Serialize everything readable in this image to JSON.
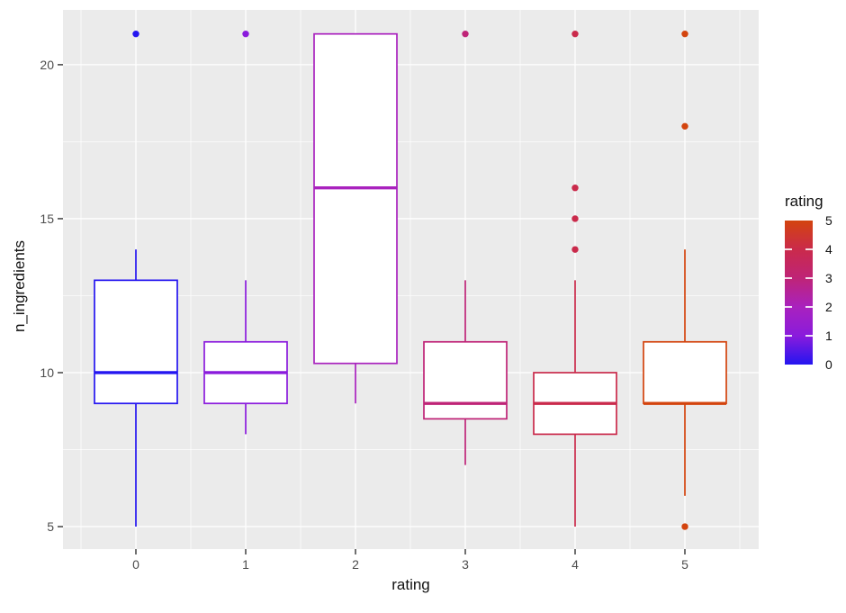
{
  "chart_data": {
    "type": "boxplot",
    "title": "",
    "xlabel": "rating",
    "ylabel": "n_ingredients",
    "x_categories": [
      "0",
      "1",
      "2",
      "3",
      "4",
      "5"
    ],
    "y_ticks": [
      5,
      10,
      15,
      20
    ],
    "y_minor_gridlines": [
      7.5,
      12.5,
      17.5
    ],
    "ylim": [
      4.27,
      21.78
    ],
    "grid": true,
    "panel_bg_color": "#EBEBEB",
    "grid_color": "#FFFFFF",
    "tick_mark_color": "#333333",
    "tick_label_color": "#4D4D4D",
    "series": [
      {
        "rating": "0",
        "color": "#2415F0",
        "whisker_low": 5,
        "q1": 9,
        "median": 10,
        "q3": 13,
        "whisker_high": 14,
        "outliers": [
          21
        ]
      },
      {
        "rating": "1",
        "color": "#8A1BDC",
        "whisker_low": 8,
        "q1": 9,
        "median": 10,
        "q3": 11,
        "whisker_high": 13,
        "outliers": [
          21
        ]
      },
      {
        "rating": "2",
        "color": "#A922BE",
        "whisker_low": 9,
        "q1": 10.3,
        "median": 16,
        "q3": 21,
        "whisker_high": 21,
        "outliers": []
      },
      {
        "rating": "3",
        "color": "#BF2477",
        "whisker_low": 7,
        "q1": 8.5,
        "median": 9,
        "q3": 11,
        "whisker_high": 13,
        "outliers": [
          21
        ]
      },
      {
        "rating": "4",
        "color": "#CA2A4B",
        "whisker_low": 5,
        "q1": 8,
        "median": 9,
        "q3": 10,
        "whisker_high": 13,
        "outliers": [
          14,
          15,
          16,
          21
        ]
      },
      {
        "rating": "5",
        "color": "#D3440E",
        "whisker_low": 6,
        "q1": 9,
        "median": 9,
        "q3": 11,
        "whisker_high": 14,
        "outliers": [
          5,
          18,
          21
        ]
      }
    ],
    "legend": {
      "title": "rating",
      "position": "right",
      "tick_values": [
        5,
        4,
        3,
        2,
        1,
        0
      ],
      "gradient_low_to_high": [
        "#2415F0",
        "#8A1BDC",
        "#A922BE",
        "#BF2477",
        "#CA2A4B",
        "#D3440E"
      ]
    }
  }
}
